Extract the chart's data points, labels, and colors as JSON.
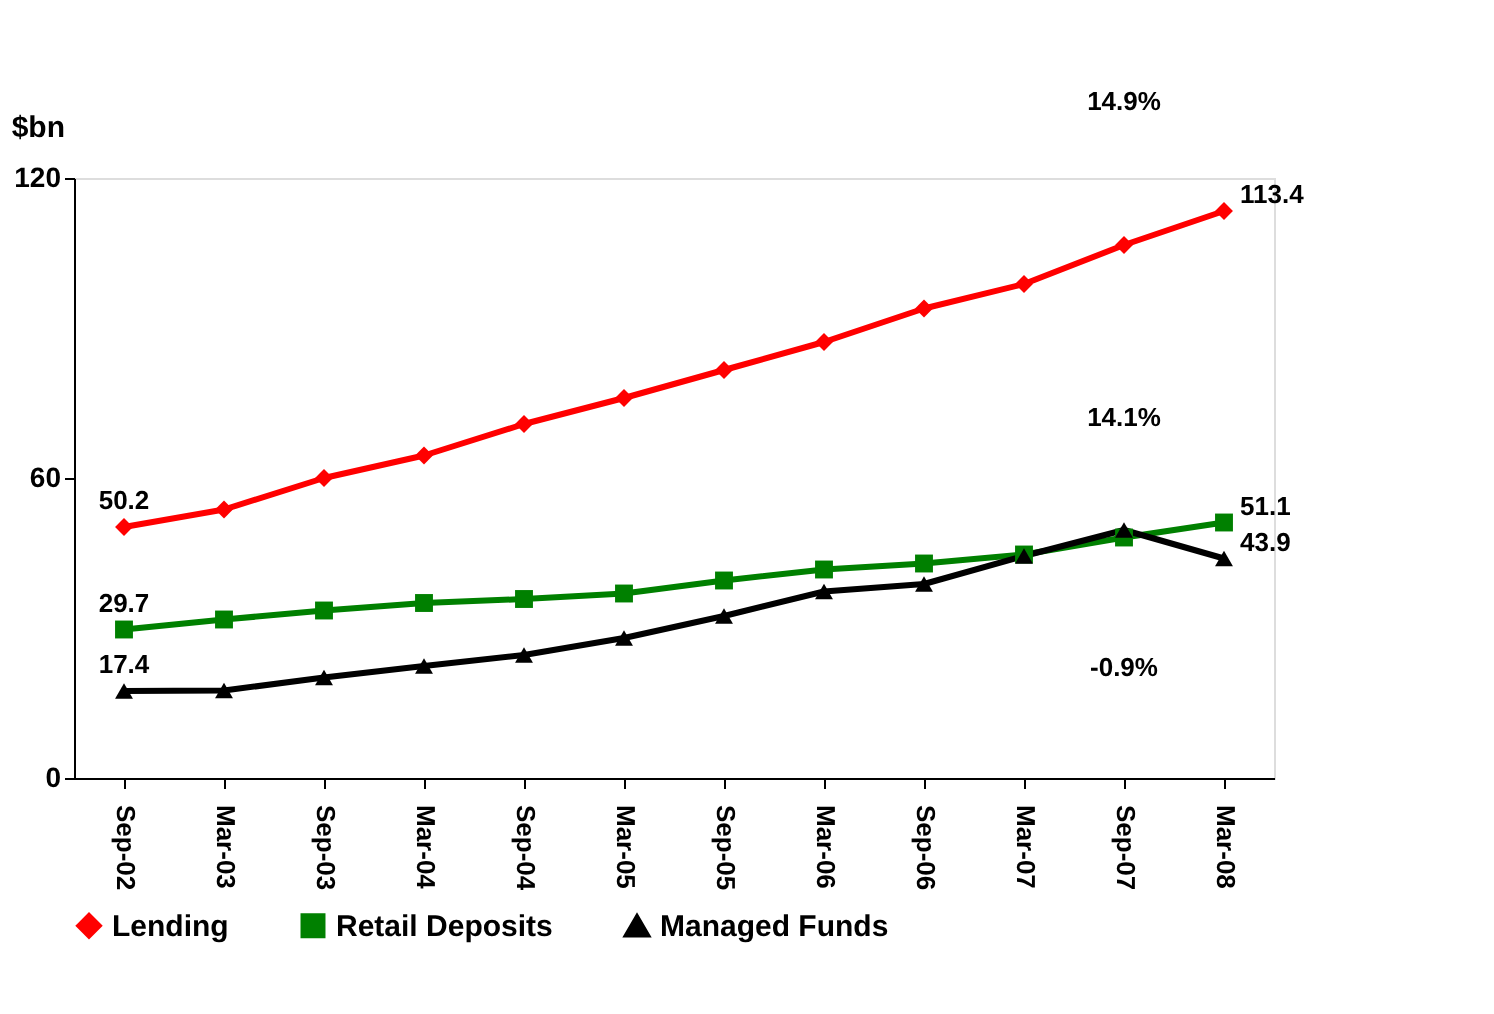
{
  "chart_data": {
    "type": "line",
    "ylabel": "$bn",
    "categories": [
      "Sep-02",
      "Mar-03",
      "Sep-03",
      "Mar-04",
      "Sep-04",
      "Mar-05",
      "Sep-05",
      "Mar-06",
      "Sep-06",
      "Mar-07",
      "Sep-07",
      "Mar-08"
    ],
    "series": [
      {
        "name": "Lending",
        "color": "#ff0000",
        "marker": "diamond",
        "values": [
          50.2,
          53.7,
          60,
          64.5,
          70.8,
          76,
          81.6,
          87.2,
          93.9,
          98.8,
          106.6,
          113.4
        ],
        "value_labels": [
          "50.2",
          null,
          null,
          null,
          null,
          null,
          null,
          null,
          null,
          null,
          null,
          "113.4"
        ]
      },
      {
        "name": "Retail Deposits",
        "color": "#008000",
        "marker": "square",
        "values": [
          29.7,
          31.7,
          33.5,
          35,
          35.8,
          36.9,
          39.5,
          41.7,
          42.9,
          44.7,
          48.1,
          51.1
        ],
        "value_labels": [
          "29.7",
          null,
          null,
          null,
          null,
          null,
          null,
          null,
          null,
          null,
          null,
          "51.1"
        ]
      },
      {
        "name": "Managed Funds",
        "color": "#000000",
        "marker": "triangle",
        "values": [
          17.4,
          17.5,
          20.1,
          22.4,
          24.6,
          28,
          32.4,
          37.3,
          38.8,
          44.4,
          49.6,
          43.9
        ],
        "value_labels": [
          "17.4",
          null,
          null,
          null,
          null,
          null,
          null,
          null,
          null,
          null,
          null,
          "43.9"
        ]
      }
    ],
    "ylim": [
      0,
      120
    ],
    "yticks": [
      0,
      60,
      120
    ],
    "grid": false,
    "legend": "bottom",
    "line_style": "solid",
    "annotations": [
      "14.9%",
      "14.1%",
      "-0.9%"
    ]
  }
}
